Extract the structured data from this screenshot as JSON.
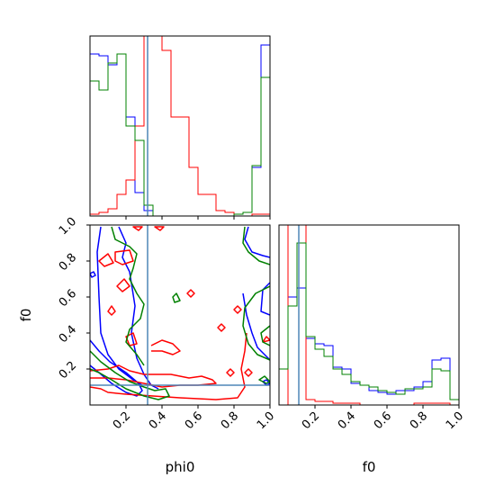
{
  "chart_data": {
    "type": "corner",
    "parameters": [
      "phi0",
      "f0"
    ],
    "xlabels": {
      "phi0": "phi0",
      "f0": "f0"
    },
    "ylabel": "f0",
    "ranges": {
      "phi0": [
        0,
        1
      ],
      "f0": [
        0,
        1
      ]
    },
    "ticks": [
      0.2,
      0.4,
      0.6,
      0.8,
      1.0
    ],
    "tick_labels": [
      "0.2",
      "0.4",
      "0.6",
      "0.8",
      "1.0"
    ],
    "truth": {
      "phi0": 0.32,
      "f0": 0.11
    },
    "truth_color": "#4f86b7",
    "series_colors": [
      "#0000ff",
      "#ff0000",
      "#008000"
    ],
    "hist_phi0": {
      "bin_edges": [
        0.0,
        0.05,
        0.1,
        0.15,
        0.2,
        0.25,
        0.3,
        0.35,
        0.4,
        0.45,
        0.5,
        0.55,
        0.6,
        0.65,
        0.7,
        0.75,
        0.8,
        0.85,
        0.9,
        0.95,
        1.0
      ],
      "series": [
        {
          "color": "#0000ff",
          "values": [
            0.9,
            0.89,
            0.84,
            0.9,
            0.55,
            0.13,
            0.03,
            0,
            0,
            0,
            0,
            0,
            0,
            0,
            0,
            0,
            0.01,
            0.02,
            0.27,
            0.95
          ]
        },
        {
          "color": "#ff0000",
          "values": [
            0.01,
            0.02,
            0.04,
            0.12,
            0.2,
            0.5,
            1.2,
            1.15,
            0.92,
            0.55,
            0.55,
            0.27,
            0.12,
            0.12,
            0.03,
            0.02,
            0,
            0,
            0.01,
            0.01
          ]
        },
        {
          "color": "#008000",
          "values": [
            0.75,
            0.7,
            0.85,
            0.9,
            0.5,
            0.42,
            0.06,
            0,
            0,
            0,
            0,
            0,
            0,
            0,
            0,
            0,
            0.01,
            0.02,
            0.28,
            0.77
          ]
        }
      ]
    },
    "hist_f0": {
      "bin_edges": [
        0.0,
        0.05,
        0.1,
        0.15,
        0.2,
        0.25,
        0.3,
        0.35,
        0.4,
        0.45,
        0.5,
        0.55,
        0.6,
        0.65,
        0.7,
        0.75,
        0.8,
        0.85,
        0.9,
        0.95,
        1.0
      ],
      "series": [
        {
          "color": "#0000ff",
          "values": [
            0.2,
            0.6,
            0.65,
            0.37,
            0.34,
            0.33,
            0.21,
            0.2,
            0.12,
            0.11,
            0.08,
            0.07,
            0.06,
            0.08,
            0.08,
            0.1,
            0.13,
            0.25,
            0.26,
            0.03
          ]
        },
        {
          "color": "#ff0000",
          "values": [
            0.0,
            1.2,
            1.2,
            0.03,
            0.02,
            0.02,
            0.01,
            0.01,
            0.01,
            0.0,
            0.0,
            0.0,
            0.0,
            0.0,
            0.0,
            0.01,
            0.01,
            0.01,
            0.01,
            0.0
          ]
        },
        {
          "color": "#008000",
          "values": [
            0.2,
            0.55,
            0.9,
            0.38,
            0.31,
            0.27,
            0.2,
            0.17,
            0.13,
            0.11,
            0.1,
            0.08,
            0.07,
            0.06,
            0.09,
            0.09,
            0.1,
            0.2,
            0.19,
            0.03
          ]
        }
      ]
    },
    "contours": [
      {
        "color": "#0000ff",
        "closed": false,
        "points": [
          [
            0.06,
            0.99
          ],
          [
            0.04,
            0.85
          ],
          [
            0.05,
            0.6
          ],
          [
            0.06,
            0.4
          ],
          [
            0.1,
            0.28
          ],
          [
            0.16,
            0.2
          ],
          [
            0.24,
            0.14
          ],
          [
            0.29,
            0.11
          ]
        ]
      },
      {
        "color": "#0000ff",
        "closed": false,
        "points": [
          [
            0.16,
            0.99
          ],
          [
            0.2,
            0.9
          ],
          [
            0.18,
            0.82
          ],
          [
            0.22,
            0.74
          ],
          [
            0.25,
            0.55
          ],
          [
            0.23,
            0.4
          ],
          [
            0.26,
            0.26
          ],
          [
            0.3,
            0.17
          ],
          [
            0.34,
            0.11
          ],
          [
            0.38,
            0.09
          ]
        ]
      },
      {
        "color": "#0000ff",
        "closed": false,
        "points": [
          [
            0.0,
            0.36
          ],
          [
            0.05,
            0.3
          ],
          [
            0.11,
            0.24
          ],
          [
            0.2,
            0.18
          ],
          [
            0.27,
            0.12
          ],
          [
            0.29,
            0.08
          ],
          [
            0.26,
            0.05
          ],
          [
            0.2,
            0.07
          ],
          [
            0.12,
            0.12
          ],
          [
            0.05,
            0.18
          ],
          [
            0.0,
            0.22
          ]
        ]
      },
      {
        "color": "#0000ff",
        "closed": false,
        "points": [
          [
            0.88,
            0.99
          ],
          [
            0.86,
            0.92
          ],
          [
            0.9,
            0.85
          ],
          [
            0.96,
            0.83
          ],
          [
            1.0,
            0.82
          ]
        ]
      },
      {
        "color": "#0000ff",
        "closed": false,
        "points": [
          [
            0.85,
            0.62
          ],
          [
            0.87,
            0.5
          ],
          [
            0.9,
            0.4
          ],
          [
            0.93,
            0.32
          ],
          [
            1.0,
            0.25
          ]
        ]
      },
      {
        "color": "#0000ff",
        "closed": false,
        "points": [
          [
            1.0,
            0.68
          ],
          [
            0.96,
            0.64
          ],
          [
            0.95,
            0.52
          ],
          [
            1.0,
            0.5
          ]
        ]
      },
      {
        "color": "#0000ff",
        "closed": true,
        "points": [
          [
            0.0,
            0.73
          ],
          [
            0.02,
            0.74
          ],
          [
            0.03,
            0.72
          ],
          [
            0.01,
            0.71
          ]
        ]
      },
      {
        "color": "#0000ff",
        "closed": true,
        "points": [
          [
            0.96,
            0.13
          ],
          [
            0.98,
            0.11
          ],
          [
            1.0,
            0.12
          ],
          [
            0.98,
            0.14
          ]
        ]
      },
      {
        "color": "#ff0000",
        "closed": true,
        "points": [
          [
            0.24,
            0.99
          ],
          [
            0.27,
            0.97
          ],
          [
            0.29,
            0.99
          ]
        ]
      },
      {
        "color": "#ff0000",
        "closed": true,
        "points": [
          [
            0.36,
            0.99
          ],
          [
            0.39,
            0.97
          ],
          [
            0.41,
            0.99
          ]
        ]
      },
      {
        "color": "#ff0000",
        "closed": true,
        "points": [
          [
            0.05,
            0.8
          ],
          [
            0.1,
            0.84
          ],
          [
            0.13,
            0.79
          ],
          [
            0.08,
            0.77
          ]
        ]
      },
      {
        "color": "#ff0000",
        "closed": true,
        "points": [
          [
            0.14,
            0.85
          ],
          [
            0.22,
            0.86
          ],
          [
            0.24,
            0.8
          ],
          [
            0.18,
            0.78
          ],
          [
            0.14,
            0.8
          ]
        ]
      },
      {
        "color": "#ff0000",
        "closed": true,
        "points": [
          [
            0.15,
            0.66
          ],
          [
            0.19,
            0.7
          ],
          [
            0.22,
            0.66
          ],
          [
            0.18,
            0.63
          ]
        ]
      },
      {
        "color": "#ff0000",
        "closed": true,
        "points": [
          [
            0.1,
            0.52
          ],
          [
            0.12,
            0.55
          ],
          [
            0.14,
            0.52
          ],
          [
            0.12,
            0.5
          ]
        ]
      },
      {
        "color": "#ff0000",
        "closed": true,
        "points": [
          [
            0.54,
            0.62
          ],
          [
            0.56,
            0.64
          ],
          [
            0.58,
            0.62
          ],
          [
            0.56,
            0.6
          ]
        ]
      },
      {
        "color": "#ff0000",
        "closed": true,
        "points": [
          [
            0.8,
            0.53
          ],
          [
            0.82,
            0.55
          ],
          [
            0.84,
            0.53
          ],
          [
            0.82,
            0.51
          ]
        ]
      },
      {
        "color": "#ff0000",
        "closed": true,
        "points": [
          [
            0.71,
            0.43
          ],
          [
            0.73,
            0.45
          ],
          [
            0.75,
            0.43
          ],
          [
            0.73,
            0.41
          ]
        ]
      },
      {
        "color": "#ff0000",
        "closed": true,
        "points": [
          [
            0.2,
            0.38
          ],
          [
            0.24,
            0.4
          ],
          [
            0.26,
            0.34
          ],
          [
            0.22,
            0.33
          ]
        ]
      },
      {
        "color": "#ff0000",
        "closed": false,
        "points": [
          [
            0.34,
            0.33
          ],
          [
            0.4,
            0.36
          ],
          [
            0.46,
            0.34
          ],
          [
            0.5,
            0.3
          ],
          [
            0.46,
            0.28
          ],
          [
            0.4,
            0.3
          ],
          [
            0.34,
            0.3
          ]
        ]
      },
      {
        "color": "#ff0000",
        "closed": true,
        "points": [
          [
            0.76,
            0.18
          ],
          [
            0.78,
            0.2
          ],
          [
            0.8,
            0.18
          ],
          [
            0.78,
            0.16
          ]
        ]
      },
      {
        "color": "#ff0000",
        "closed": true,
        "points": [
          [
            0.86,
            0.18
          ],
          [
            0.88,
            0.2
          ],
          [
            0.9,
            0.18
          ],
          [
            0.88,
            0.16
          ]
        ]
      },
      {
        "color": "#ff0000",
        "closed": false,
        "points": [
          [
            0.0,
            0.19
          ],
          [
            0.1,
            0.2
          ],
          [
            0.16,
            0.22
          ],
          [
            0.22,
            0.19
          ],
          [
            0.3,
            0.17
          ],
          [
            0.45,
            0.17
          ],
          [
            0.55,
            0.15
          ],
          [
            0.62,
            0.16
          ],
          [
            0.68,
            0.14
          ],
          [
            0.7,
            0.12
          ],
          [
            0.6,
            0.11
          ],
          [
            0.5,
            0.11
          ],
          [
            0.4,
            0.1
          ],
          [
            0.3,
            0.12
          ],
          [
            0.2,
            0.14
          ],
          [
            0.1,
            0.15
          ],
          [
            0.0,
            0.15
          ]
        ]
      },
      {
        "color": "#ff0000",
        "closed": false,
        "points": [
          [
            0.0,
            0.1
          ],
          [
            0.06,
            0.09
          ],
          [
            0.1,
            0.07
          ],
          [
            0.2,
            0.06
          ],
          [
            0.35,
            0.05
          ],
          [
            0.5,
            0.04
          ],
          [
            0.7,
            0.03
          ],
          [
            0.82,
            0.04
          ],
          [
            0.86,
            0.1
          ],
          [
            0.84,
            0.2
          ],
          [
            0.86,
            0.3
          ],
          [
            0.87,
            0.4
          ]
        ]
      },
      {
        "color": "#ff0000",
        "closed": true,
        "points": [
          [
            0.96,
            0.35
          ],
          [
            0.98,
            0.38
          ],
          [
            1.0,
            0.36
          ]
        ]
      },
      {
        "color": "#008000",
        "closed": false,
        "points": [
          [
            0.12,
            0.99
          ],
          [
            0.14,
            0.92
          ],
          [
            0.22,
            0.88
          ],
          [
            0.26,
            0.84
          ],
          [
            0.24,
            0.76
          ],
          [
            0.22,
            0.7
          ],
          [
            0.26,
            0.62
          ],
          [
            0.3,
            0.56
          ],
          [
            0.28,
            0.48
          ],
          [
            0.22,
            0.42
          ],
          [
            0.2,
            0.35
          ],
          [
            0.26,
            0.28
          ],
          [
            0.3,
            0.22
          ]
        ]
      },
      {
        "color": "#008000",
        "closed": false,
        "points": [
          [
            0.0,
            0.3
          ],
          [
            0.06,
            0.24
          ],
          [
            0.14,
            0.18
          ],
          [
            0.22,
            0.13
          ],
          [
            0.3,
            0.1
          ],
          [
            0.36,
            0.08
          ],
          [
            0.42,
            0.09
          ],
          [
            0.44,
            0.05
          ],
          [
            0.38,
            0.03
          ],
          [
            0.3,
            0.05
          ],
          [
            0.2,
            0.09
          ],
          [
            0.12,
            0.14
          ],
          [
            0.05,
            0.18
          ],
          [
            0.0,
            0.2
          ]
        ]
      },
      {
        "color": "#008000",
        "closed": true,
        "points": [
          [
            0.46,
            0.6
          ],
          [
            0.48,
            0.62
          ],
          [
            0.5,
            0.58
          ],
          [
            0.47,
            0.57
          ]
        ]
      },
      {
        "color": "#008000",
        "closed": false,
        "points": [
          [
            0.86,
            0.99
          ],
          [
            0.85,
            0.9
          ],
          [
            0.88,
            0.85
          ],
          [
            0.94,
            0.8
          ],
          [
            1.0,
            0.78
          ]
        ]
      },
      {
        "color": "#008000",
        "closed": false,
        "points": [
          [
            1.0,
            0.66
          ],
          [
            0.92,
            0.62
          ],
          [
            0.86,
            0.54
          ],
          [
            0.85,
            0.44
          ],
          [
            0.88,
            0.34
          ],
          [
            0.93,
            0.28
          ],
          [
            1.0,
            0.25
          ]
        ]
      },
      {
        "color": "#008000",
        "closed": true,
        "points": [
          [
            0.94,
            0.14
          ],
          [
            0.98,
            0.12
          ],
          [
            1.0,
            0.13
          ],
          [
            0.97,
            0.16
          ]
        ]
      },
      {
        "color": "#008000",
        "closed": false,
        "points": [
          [
            1.0,
            0.44
          ],
          [
            0.95,
            0.4
          ],
          [
            0.96,
            0.35
          ],
          [
            1.0,
            0.33
          ]
        ]
      }
    ]
  }
}
